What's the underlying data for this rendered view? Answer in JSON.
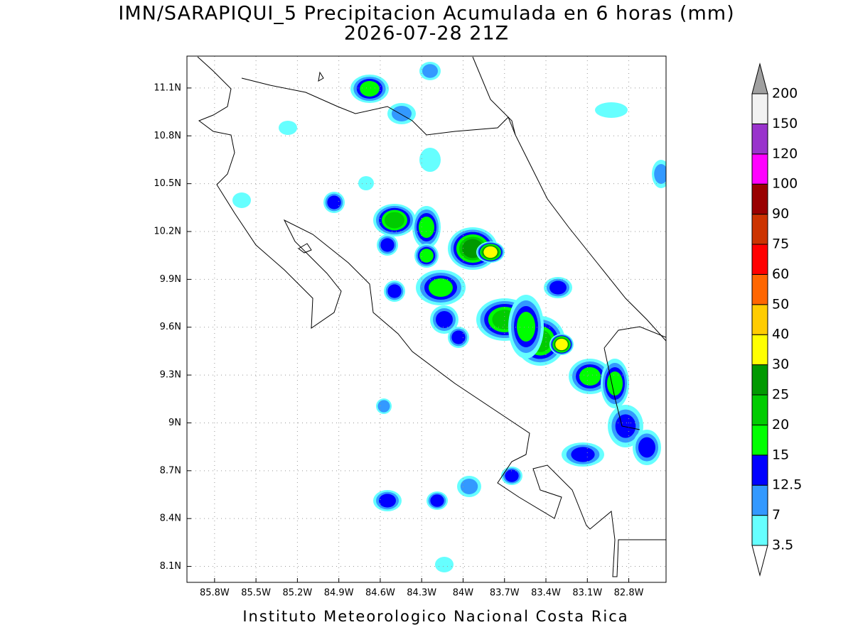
{
  "chart_data": {
    "type": "map",
    "title": "IMN/SARAPIQUI_5 Precipitacion Acumulada en 6 horas (mm)",
    "subtitle": "2026-07-28 21Z",
    "footer": "Instituto Meteorologico Nacional Costa Rica",
    "xlim": [
      -86.0,
      -82.53
    ],
    "ylim": [
      8.0,
      11.3
    ],
    "xticks": [
      {
        "value": -85.8,
        "label": "85.8W"
      },
      {
        "value": -85.5,
        "label": "85.5W"
      },
      {
        "value": -85.2,
        "label": "85.2W"
      },
      {
        "value": -84.9,
        "label": "84.9W"
      },
      {
        "value": -84.6,
        "label": "84.6W"
      },
      {
        "value": -84.3,
        "label": "84.3W"
      },
      {
        "value": -84.0,
        "label": "84W"
      },
      {
        "value": -83.7,
        "label": "83.7W"
      },
      {
        "value": -83.4,
        "label": "83.4W"
      },
      {
        "value": -83.1,
        "label": "83.1W"
      },
      {
        "value": -82.8,
        "label": "82.8W"
      }
    ],
    "yticks": [
      {
        "value": 8.1,
        "label": "8.1N"
      },
      {
        "value": 8.4,
        "label": "8.4N"
      },
      {
        "value": 8.7,
        "label": "8.7N"
      },
      {
        "value": 9.0,
        "label": "9N"
      },
      {
        "value": 9.3,
        "label": "9.3N"
      },
      {
        "value": 9.6,
        "label": "9.6N"
      },
      {
        "value": 9.9,
        "label": "9.9N"
      },
      {
        "value": 10.2,
        "label": "10.2N"
      },
      {
        "value": 10.5,
        "label": "10.5N"
      },
      {
        "value": 10.8,
        "label": "10.8N"
      },
      {
        "value": 11.1,
        "label": "11.1N"
      }
    ],
    "grid": true,
    "colorbar": {
      "levels": [
        3.5,
        7,
        12.5,
        15,
        20,
        25,
        30,
        40,
        50,
        60,
        75,
        90,
        100,
        120,
        150,
        200
      ],
      "colors": [
        "#ffffff",
        "#66ffff",
        "#3399ff",
        "#0000ff",
        "#00ff00",
        "#00cc00",
        "#009900",
        "#ffff00",
        "#ffcc00",
        "#ff6600",
        "#ff0000",
        "#cc3300",
        "#990000",
        "#ff00ff",
        "#9933cc",
        "#f2f2f2",
        "#a0a0a0"
      ]
    }
  }
}
